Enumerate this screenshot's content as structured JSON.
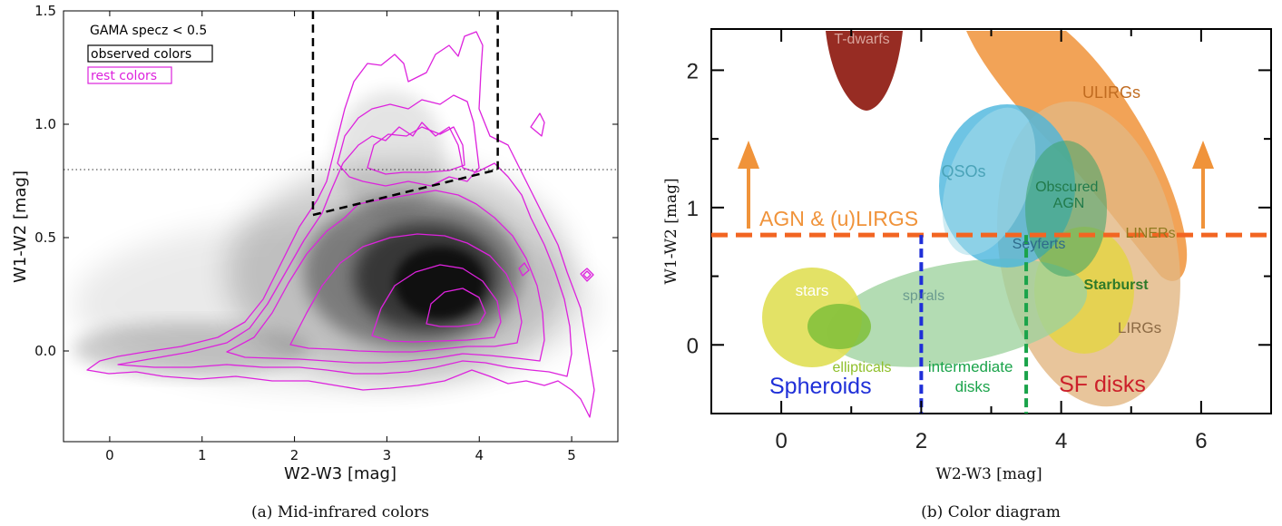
{
  "chart_data": [
    {
      "type": "heatmap",
      "panel": "a",
      "caption": "(a) Mid-infrared colors",
      "xlabel": "W2-W3 [mag]",
      "ylabel": "W1-W2 [mag]",
      "xlim": [
        -0.5,
        5.5
      ],
      "ylim": [
        -0.4,
        1.5
      ],
      "xticks": [
        "0",
        "1",
        "2",
        "3",
        "4",
        "5"
      ],
      "yticks": [
        "0.0",
        "0.5",
        "1.0",
        "1.5"
      ],
      "legend_placement": "top-left",
      "legend": {
        "title": "GAMA specz < 0.5",
        "entries": [
          {
            "label": "observed colors",
            "color": "#000000"
          },
          {
            "label": "rest colors",
            "color": "#dd22dd"
          }
        ]
      },
      "density_peak": {
        "x": 3.7,
        "y": 0.25
      },
      "horizontal_line": {
        "y": 0.8,
        "style": "dotted"
      },
      "selection_wedge": {
        "vertices": [
          [
            2.2,
            1.5
          ],
          [
            2.2,
            0.6
          ],
          [
            4.2,
            0.8
          ],
          [
            4.2,
            1.5
          ]
        ],
        "style": "dashed"
      },
      "contour_color": "#dd22dd",
      "grid": false
    },
    {
      "type": "diagram",
      "panel": "b",
      "caption": "(b) Color diagram",
      "xlabel": "W2-W3 [mag]",
      "ylabel": "W1-W2 [mag]",
      "xlim": [
        -1,
        7
      ],
      "ylim": [
        -0.5,
        2.3
      ],
      "xticks": [
        "0",
        "2",
        "4",
        "6"
      ],
      "yticks": [
        "0",
        "1",
        "2"
      ],
      "agn_cut": {
        "y": 0.8,
        "color": "#f26522",
        "label": "AGN & (u)LIRGS"
      },
      "spheroid_cut": {
        "x": 2.0,
        "color": "#1f2fd8",
        "label": "Spheroids"
      },
      "disk_cut": {
        "x": 3.5,
        "color": "#1aa34a",
        "label": "intermediate disks"
      },
      "sf_label": {
        "text": "SF disks",
        "color": "#cc1f2a"
      },
      "regions": [
        {
          "label": "T-dwarfs",
          "color": "#8e1a10"
        },
        {
          "label": "ULIRGs",
          "color": "#f0933a"
        },
        {
          "label": "QSOs",
          "color": "#4ab5dd"
        },
        {
          "label": "Obscured AGN",
          "color": "#3aa36a"
        },
        {
          "label": "LINERs",
          "color": "#d9c23a"
        },
        {
          "label": "Seyferts",
          "color": "#4ab5dd"
        },
        {
          "label": "Starburst",
          "color": "#2e7a2a"
        },
        {
          "label": "LIRGs",
          "color": "#e2b682"
        },
        {
          "label": "stars",
          "color": "#e0df55"
        },
        {
          "label": "spirals",
          "color": "#9ed29e"
        },
        {
          "label": "ellipticals",
          "color": "#7fbf3a"
        }
      ]
    }
  ]
}
